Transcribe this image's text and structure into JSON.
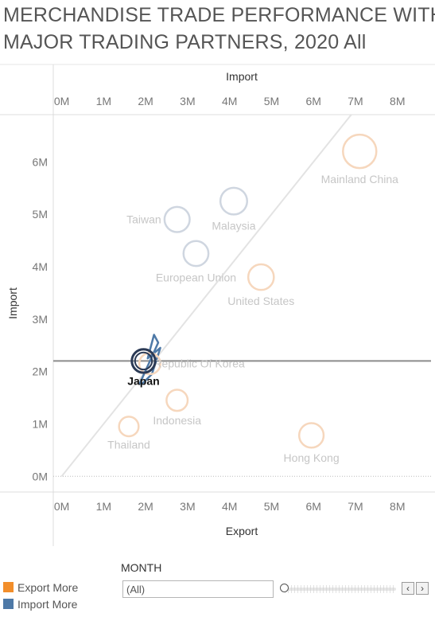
{
  "title": {
    "line1": "MERCHANDISE TRADE PERFORMANCE WITH",
    "line2": "MAJOR TRADING PARTNERS, 2020  All"
  },
  "colors": {
    "export_more": "#f28e2b",
    "import_more": "#4e79a7",
    "navy": "#2b3a55"
  },
  "legend": [
    {
      "label": "Export More",
      "color": "#f28e2b"
    },
    {
      "label": "Import More",
      "color": "#4e79a7"
    }
  ],
  "filter": {
    "label": "MONTH",
    "value": "(All)",
    "prev_icon": "chevron-left-icon",
    "next_icon": "chevron-right-icon"
  },
  "chart_data": {
    "type": "scatter",
    "xlabel": "Export",
    "top_axis_label": "Import",
    "ylabel": "Import",
    "xlim": [
      -0.2,
      8.8
    ],
    "ylim": [
      -0.3,
      6.9
    ],
    "x_ticks": [
      0,
      1,
      2,
      3,
      4,
      5,
      6,
      7,
      8
    ],
    "x_tick_labels": [
      "0M",
      "1M",
      "2M",
      "3M",
      "4M",
      "5M",
      "6M",
      "7M",
      "8M"
    ],
    "y_ticks": [
      0,
      1,
      2,
      3,
      4,
      5,
      6
    ],
    "y_tick_labels": [
      "0M",
      "1M",
      "2M",
      "3M",
      "4M",
      "5M",
      "6M"
    ],
    "diagonal": [
      [
        0,
        0
      ],
      [
        6.9,
        6.9
      ]
    ],
    "reference_line_y": 2.2,
    "points": [
      {
        "name": "Mainland China",
        "x": 7.1,
        "y": 6.2,
        "size": 1.0,
        "balance": "export"
      },
      {
        "name": "Malaysia",
        "x": 4.1,
        "y": 5.25,
        "size": 0.7,
        "balance": "import"
      },
      {
        "name": "Taiwan",
        "x": 2.75,
        "y": 4.9,
        "size": 0.63,
        "balance": "import"
      },
      {
        "name": "European Union",
        "x": 3.2,
        "y": 4.25,
        "size": 0.62,
        "balance": "import"
      },
      {
        "name": "United States",
        "x": 4.75,
        "y": 3.8,
        "size": 0.65,
        "balance": "export"
      },
      {
        "name": "Republic Of Korea",
        "x": 2.1,
        "y": 2.15,
        "size": 0.45,
        "balance": "export"
      },
      {
        "name": "Japan",
        "x": 1.95,
        "y": 2.2,
        "size": 0.55,
        "balance": "import",
        "highlighted": true
      },
      {
        "name": "Indonesia",
        "x": 2.75,
        "y": 1.45,
        "size": 0.45,
        "balance": "export"
      },
      {
        "name": "Thailand",
        "x": 1.6,
        "y": 0.95,
        "size": 0.38,
        "balance": "export"
      },
      {
        "name": "Hong Kong",
        "x": 5.95,
        "y": 0.78,
        "size": 0.6,
        "balance": "export"
      }
    ],
    "highlight_trail": [
      [
        1.85,
        1.75
      ],
      [
        2.3,
        2.55
      ],
      [
        2.2,
        2.7
      ],
      [
        2.05,
        2.25
      ],
      [
        2.35,
        2.45
      ],
      [
        2.15,
        1.95
      ],
      [
        1.9,
        1.75
      ]
    ],
    "grid": false
  }
}
